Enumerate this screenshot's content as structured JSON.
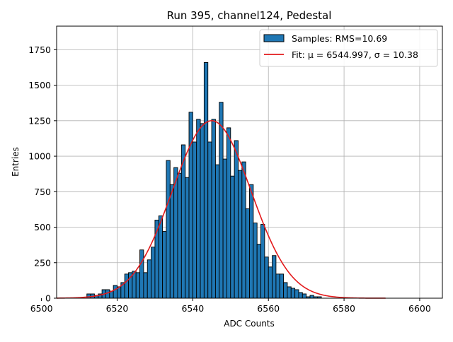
{
  "chart_data": {
    "type": "bar",
    "title": "Run 395, channel124, Pedestal",
    "xlabel": "ADC Counts",
    "ylabel": "Entries",
    "xlim": [
      6504,
      6606
    ],
    "ylim": [
      0,
      1916
    ],
    "xticks": [
      6500,
      6520,
      6540,
      6560,
      6580,
      6600
    ],
    "yticks": [
      0,
      250,
      500,
      750,
      1000,
      1250,
      1500,
      1750
    ],
    "grid": true,
    "legend_position": "top-right",
    "colors": {
      "bars": "#1f77b4",
      "fit": "#e31a1c",
      "edge": "#000000"
    },
    "histogram": {
      "name": "Samples: RMS=10.69",
      "bin_start": 6504,
      "bin_width": 1,
      "values": [
        0,
        0,
        0,
        0,
        0,
        0,
        0,
        0,
        30,
        30,
        20,
        30,
        60,
        60,
        50,
        90,
        80,
        110,
        170,
        180,
        190,
        180,
        340,
        180,
        270,
        360,
        550,
        580,
        470,
        970,
        800,
        920,
        880,
        1080,
        850,
        1310,
        1100,
        1260,
        1230,
        1660,
        1100,
        1260,
        940,
        1380,
        980,
        1200,
        860,
        1110,
        900,
        960,
        630,
        800,
        530,
        380,
        520,
        290,
        220,
        300,
        170,
        170,
        110,
        80,
        70,
        60,
        40,
        30,
        10,
        20,
        10,
        10,
        0
      ]
    },
    "fit": {
      "name": "Fit: μ = 6544.997, σ = 10.38",
      "mu": 6544.997,
      "sigma": 10.38,
      "amplitude": 1250,
      "x_range": [
        6504,
        6591
      ]
    }
  }
}
